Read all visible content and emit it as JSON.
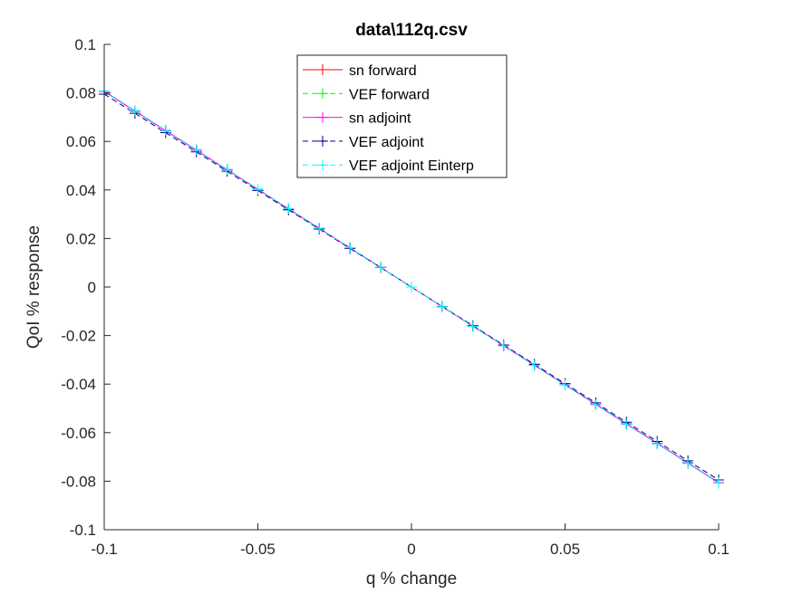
{
  "chart_data": {
    "type": "line",
    "title": "data\\112q.csv",
    "xlabel": "q % change",
    "ylabel": "QoI % response",
    "xlim": [
      -0.1,
      0.1
    ],
    "ylim": [
      -0.1,
      0.1
    ],
    "xticks": [
      -0.1,
      -0.05,
      0,
      0.05,
      0.1
    ],
    "xtick_labels": [
      "-0.1",
      "-0.05",
      "0",
      "0.05",
      "0.1"
    ],
    "yticks": [
      0.1,
      0.08,
      0.06,
      0.04,
      0.02,
      0,
      -0.02,
      -0.04,
      -0.06,
      -0.08,
      -0.1
    ],
    "ytick_labels": [
      "0.1",
      "0.08",
      "0.06",
      "0.04",
      "0.02",
      "0",
      "-0.02",
      "-0.04",
      "-0.06",
      "-0.08",
      "-0.1"
    ],
    "grid": false,
    "legend_position": "top-center",
    "x": [
      -0.1,
      -0.09,
      -0.08,
      -0.07,
      -0.06,
      -0.05,
      -0.04,
      -0.03,
      -0.02,
      -0.01,
      0,
      0.01,
      0.02,
      0.03,
      0.04,
      0.05,
      0.06,
      0.07,
      0.08,
      0.09,
      0.1
    ],
    "series": [
      {
        "name": "sn forward",
        "color": "#ff0000",
        "dash": "solid",
        "values": [
          0.0806,
          0.0725,
          0.0644,
          0.0564,
          0.0483,
          0.0403,
          0.0322,
          0.0242,
          0.0161,
          0.0081,
          0,
          -0.0081,
          -0.0161,
          -0.0242,
          -0.0322,
          -0.0403,
          -0.0483,
          -0.0564,
          -0.0644,
          -0.0725,
          -0.0806
        ]
      },
      {
        "name": "VEF forward",
        "color": "#00ff00",
        "dash": "dashed",
        "values": [
          0.0806,
          0.0725,
          0.0644,
          0.0564,
          0.0483,
          0.0403,
          0.0322,
          0.0242,
          0.0161,
          0.0081,
          0,
          -0.0081,
          -0.0161,
          -0.0242,
          -0.0322,
          -0.0403,
          -0.0483,
          -0.0564,
          -0.0644,
          -0.0725,
          -0.0806
        ]
      },
      {
        "name": "sn adjoint",
        "color": "#ff00ff",
        "dash": "solid",
        "values": [
          0.0806,
          0.0725,
          0.0644,
          0.0564,
          0.0483,
          0.0403,
          0.0322,
          0.0242,
          0.0161,
          0.0081,
          0,
          -0.0081,
          -0.0161,
          -0.0242,
          -0.0322,
          -0.0403,
          -0.0483,
          -0.0564,
          -0.0644,
          -0.0725,
          -0.0806
        ]
      },
      {
        "name": "VEF adjoint",
        "color": "#00008b",
        "dash": "dashed",
        "values": [
          0.0795,
          0.0716,
          0.0636,
          0.0557,
          0.0477,
          0.0398,
          0.0318,
          0.0239,
          0.0159,
          0.008,
          0,
          -0.008,
          -0.0159,
          -0.0239,
          -0.0318,
          -0.0398,
          -0.0477,
          -0.0557,
          -0.0636,
          -0.0716,
          -0.0795
        ]
      },
      {
        "name": "VEF adjoint Einterp",
        "color": "#00ffff",
        "dash": "dashed",
        "values": [
          0.0808,
          0.0727,
          0.0646,
          0.0566,
          0.0485,
          0.0404,
          0.0323,
          0.0242,
          0.0162,
          0.0081,
          0,
          -0.0081,
          -0.0162,
          -0.0242,
          -0.0323,
          -0.0404,
          -0.0485,
          -0.0566,
          -0.0646,
          -0.0727,
          -0.0808
        ]
      }
    ]
  }
}
